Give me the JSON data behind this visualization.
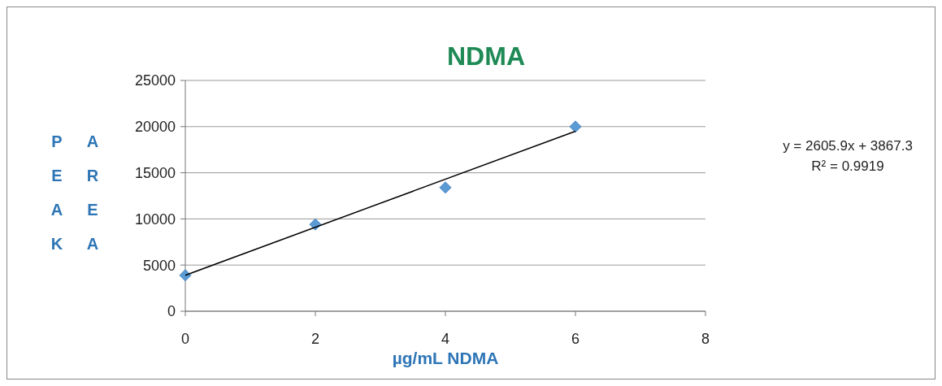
{
  "chart_data": {
    "type": "scatter",
    "title": "NDMA",
    "xlabel": "µg/mL NDMA",
    "ylabel": "PEAK AREA",
    "xlim": [
      0,
      8
    ],
    "xticks": [
      0,
      2,
      4,
      6,
      8
    ],
    "ylim": [
      0,
      25000
    ],
    "yticks": [
      0,
      5000,
      10000,
      15000,
      20000,
      25000
    ],
    "grid": "y",
    "marker": "diamond",
    "annotations": [
      "y = 2605.9x + 3867.3",
      "R² = 0.9919"
    ],
    "series": [
      {
        "color": "#5b9bd5",
        "x": [
          0,
          2,
          4,
          6
        ],
        "values": [
          3900,
          9400,
          13400,
          20000
        ]
      },
      {
        "type": "line",
        "color": "#000000",
        "marker": "none",
        "x": [
          0,
          6
        ],
        "values": [
          3900,
          19500
        ]
      }
    ]
  }
}
